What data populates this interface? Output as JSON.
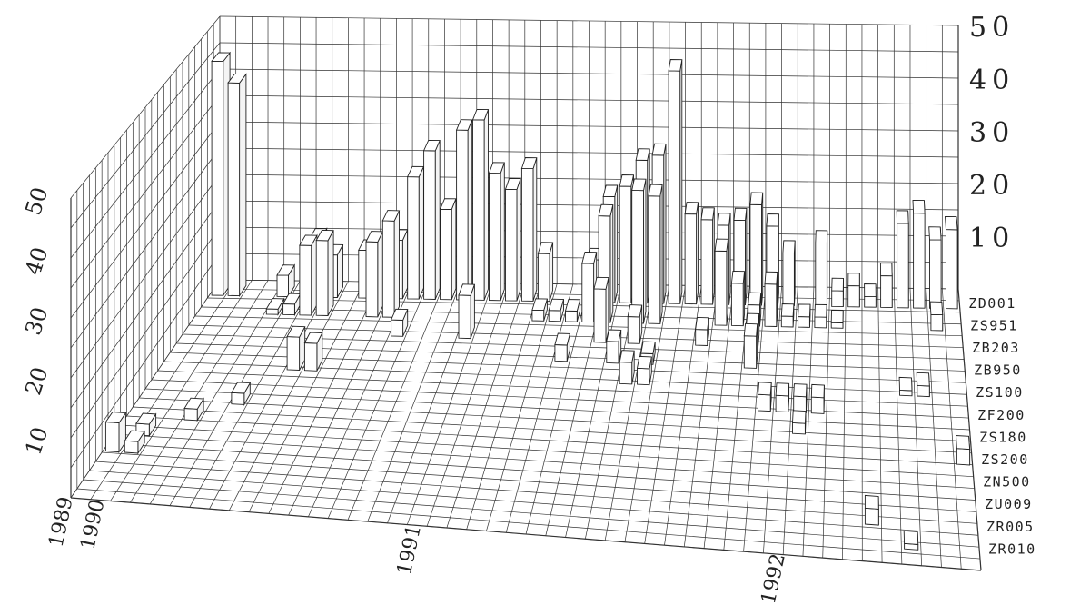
{
  "chart_data": {
    "type": "bar",
    "variant": "3d-bar",
    "title": "",
    "xlabel": "",
    "ylabel": "",
    "zlim": [
      0,
      50
    ],
    "z_ticks": [
      "10",
      "20",
      "30",
      "40",
      "50"
    ],
    "left_z_ticks": [
      "10",
      "20",
      "30",
      "40",
      "50"
    ],
    "x_ticks": [
      "1989",
      "1990",
      "1991",
      "1992"
    ],
    "x_tick_positions": [
      0.0,
      1.6,
      17.6,
      36.0
    ],
    "x_count": 46,
    "grid": true,
    "categories": [
      "ZD001",
      "ZS951",
      "ZB203",
      "ZB950",
      "ZS100",
      "ZF200",
      "ZS180",
      "ZS200",
      "ZN500",
      "ZU009",
      "ZR005",
      "ZR010"
    ],
    "series": [
      {
        "name": "ZD001",
        "points": [
          {
            "x": 0,
            "y": 44
          },
          {
            "x": 1,
            "y": 40
          },
          {
            "x": 4,
            "y": 4
          },
          {
            "x": 6,
            "y": 11
          },
          {
            "x": 7,
            "y": 8
          },
          {
            "x": 9,
            "y": 9
          },
          {
            "x": 10,
            "y": 8
          },
          {
            "x": 11,
            "y": 11
          },
          {
            "x": 12,
            "y": 23
          },
          {
            "x": 13,
            "y": 28
          },
          {
            "x": 14,
            "y": 17
          },
          {
            "x": 15,
            "y": 32
          },
          {
            "x": 16,
            "y": 34
          },
          {
            "x": 17,
            "y": 24
          },
          {
            "x": 18,
            "y": 21
          },
          {
            "x": 19,
            "y": 25
          },
          {
            "x": 20,
            "y": 9
          },
          {
            "x": 23,
            "y": 8
          },
          {
            "x": 24,
            "y": 20
          },
          {
            "x": 25,
            "y": 22
          },
          {
            "x": 26,
            "y": 27
          },
          {
            "x": 27,
            "y": 28
          },
          {
            "x": 28,
            "y": 44
          },
          {
            "x": 29,
            "y": 17
          },
          {
            "x": 30,
            "y": 16
          },
          {
            "x": 31,
            "y": 15
          },
          {
            "x": 32,
            "y": 16
          },
          {
            "x": 33,
            "y": 19
          },
          {
            "x": 34,
            "y": 15
          },
          {
            "x": 35,
            "y": 10
          },
          {
            "x": 37,
            "y": 12
          },
          {
            "x": 38,
            "y": 3
          },
          {
            "x": 39,
            "y": 4
          },
          {
            "x": 40,
            "y": 2
          },
          {
            "x": 41,
            "y": 6
          },
          {
            "x": 42,
            "y": 16
          },
          {
            "x": 43,
            "y": 18
          },
          {
            "x": 44,
            "y": 13
          },
          {
            "x": 45,
            "y": 15
          }
        ]
      },
      {
        "name": "ZS951",
        "points": [
          {
            "x": 4,
            "y": 1
          },
          {
            "x": 5,
            "y": 2
          },
          {
            "x": 6,
            "y": 13
          },
          {
            "x": 7,
            "y": 14
          },
          {
            "x": 10,
            "y": 14
          },
          {
            "x": 11,
            "y": 18
          },
          {
            "x": 20,
            "y": 2
          },
          {
            "x": 21,
            "y": 2
          },
          {
            "x": 22,
            "y": 2
          },
          {
            "x": 23,
            "y": 11
          },
          {
            "x": 24,
            "y": 20
          },
          {
            "x": 26,
            "y": 25
          },
          {
            "x": 27,
            "y": 24
          },
          {
            "x": 31,
            "y": 14
          },
          {
            "x": 32,
            "y": 8
          },
          {
            "x": 33,
            "y": 4
          },
          {
            "x": 34,
            "y": 8
          },
          {
            "x": 35,
            "y": 2
          },
          {
            "x": 36,
            "y": 2
          },
          {
            "x": 37,
            "y": 2
          },
          {
            "x": 38,
            "y": 1
          },
          {
            "x": 44,
            "y": 3
          }
        ]
      },
      {
        "name": "ZB203",
        "points": [
          {
            "x": 12,
            "y": 3
          },
          {
            "x": 16,
            "y": 8
          },
          {
            "x": 24,
            "y": 10
          },
          {
            "x": 26,
            "y": 5
          },
          {
            "x": 30,
            "y": 3
          },
          {
            "x": 33,
            "y": 4
          }
        ]
      },
      {
        "name": "ZB950",
        "points": [
          {
            "x": 22,
            "y": 3
          },
          {
            "x": 25,
            "y": 4
          },
          {
            "x": 27,
            "y": 2
          },
          {
            "x": 33,
            "y": 6
          }
        ]
      },
      {
        "name": "ZS100",
        "points": [
          {
            "x": 7,
            "y": 6
          },
          {
            "x": 8,
            "y": 5
          },
          {
            "x": 26,
            "y": 4
          },
          {
            "x": 27,
            "y": 3
          },
          {
            "x": 42,
            "y": 1
          },
          {
            "x": 43,
            "y": 2
          }
        ]
      },
      {
        "name": "ZF200",
        "points": [
          {
            "x": 34,
            "y": 3
          },
          {
            "x": 35,
            "y": 3
          },
          {
            "x": 36,
            "y": 3
          },
          {
            "x": 37,
            "y": 3
          }
        ]
      },
      {
        "name": "ZS180",
        "points": [
          {
            "x": 5,
            "y": 2
          },
          {
            "x": 36,
            "y": 2
          }
        ]
      },
      {
        "name": "ZS200",
        "points": [
          {
            "x": 3,
            "y": 2
          },
          {
            "x": 45,
            "y": 3
          }
        ]
      },
      {
        "name": "ZN500",
        "points": [
          {
            "x": 1,
            "y": 2
          }
        ]
      },
      {
        "name": "ZU009",
        "points": [
          {
            "x": 0,
            "y": 5
          },
          {
            "x": 1,
            "y": 2
          }
        ]
      },
      {
        "name": "ZR005",
        "points": [
          {
            "x": 40,
            "y": 3
          }
        ]
      },
      {
        "name": "ZR010",
        "points": [
          {
            "x": 42,
            "y": 1
          }
        ]
      }
    ]
  }
}
